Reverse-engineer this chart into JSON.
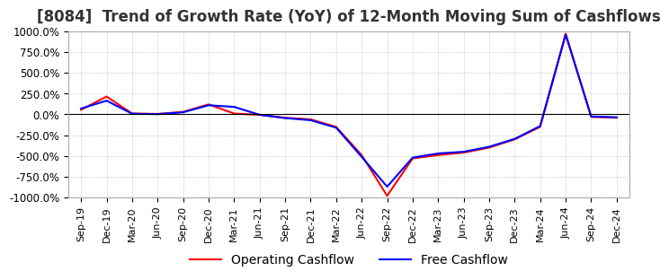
{
  "title": "[8084]  Trend of Growth Rate (YoY) of 12-Month Moving Sum of Cashflows",
  "title_fontsize": 12,
  "ylim": [
    -1000,
    1000
  ],
  "yticks": [
    -1000,
    -750,
    -500,
    -250,
    0,
    250,
    500,
    750,
    1000
  ],
  "yticklabels": [
    "-1000.0%",
    "-750.0%",
    "-500.0%",
    "-250.0%",
    "0.0%",
    "250.0%",
    "500.0%",
    "750.0%",
    "1000.0%"
  ],
  "background_color": "#ffffff",
  "plot_bg_color": "#ffffff",
  "grid_color": "#aaaaaa",
  "operating_color": "#ff0000",
  "free_color": "#0000ff",
  "legend_labels": [
    "Operating Cashflow",
    "Free Cashflow"
  ],
  "dates": [
    "Sep-19",
    "Dec-19",
    "Mar-20",
    "Jun-20",
    "Sep-20",
    "Dec-20",
    "Mar-21",
    "Jun-21",
    "Sep-21",
    "Dec-21",
    "Mar-22",
    "Jun-22",
    "Sep-22",
    "Dec-22",
    "Mar-23",
    "Jun-23",
    "Sep-23",
    "Dec-23",
    "Mar-24",
    "Jun-24",
    "Sep-24",
    "Dec-24"
  ],
  "operating_cashflow": [
    55,
    215,
    10,
    5,
    30,
    120,
    10,
    -5,
    -40,
    -60,
    -150,
    -490,
    -980,
    -530,
    -490,
    -460,
    -400,
    -300,
    -150,
    970,
    -30,
    -40
  ],
  "free_cashflow": [
    70,
    165,
    8,
    3,
    25,
    110,
    90,
    -5,
    -45,
    -70,
    -160,
    -510,
    -870,
    -520,
    -470,
    -450,
    -390,
    -295,
    -140,
    960,
    -25,
    -35
  ]
}
